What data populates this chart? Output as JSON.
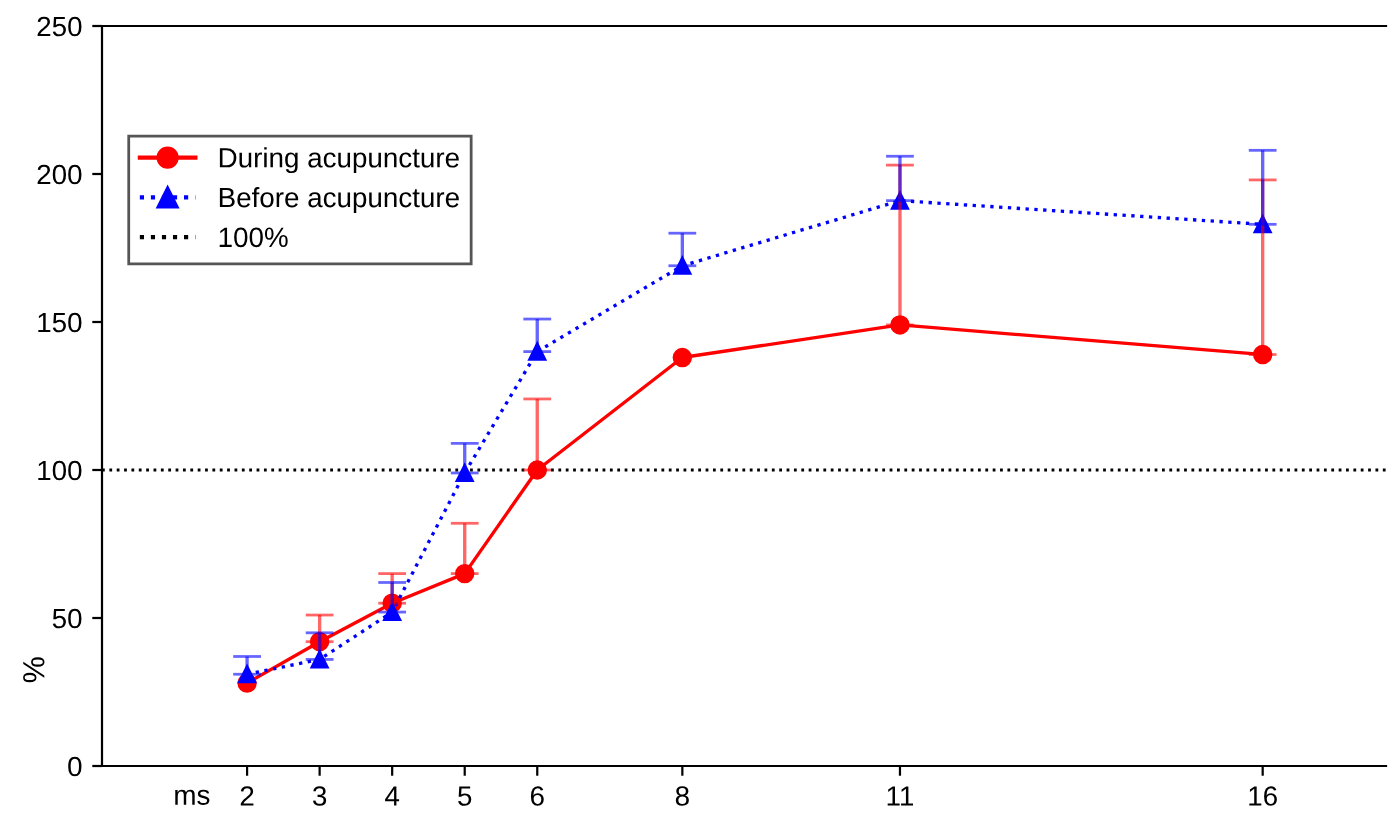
{
  "chart_data": {
    "type": "line",
    "xlabel": "ms",
    "ylabel": "%",
    "x": [
      2,
      3,
      4,
      5,
      6,
      8,
      11,
      16
    ],
    "xlim": [
      0,
      17.7
    ],
    "xticks": [
      2,
      3,
      4,
      5,
      6,
      8,
      11,
      16
    ],
    "ylim": [
      0,
      250
    ],
    "yticks": [
      0,
      50,
      100,
      150,
      200,
      250
    ],
    "grid": false,
    "legend": "top left",
    "series": [
      {
        "name": "During acupuncture",
        "color": "#ff0000",
        "marker": "circle",
        "line_style": "solid",
        "values": [
          28,
          42,
          55,
          65,
          100,
          138,
          149,
          139
        ],
        "errors": [
          null,
          [
            42,
            51
          ],
          [
            55,
            65
          ],
          [
            65,
            82
          ],
          [
            100,
            124
          ],
          null,
          [
            149,
            203
          ],
          [
            139,
            198
          ]
        ]
      },
      {
        "name": "Before acupuncture",
        "color": "#0000ff",
        "marker": "triangle",
        "line_style": "dotted",
        "values": [
          31,
          36,
          52,
          99,
          140,
          169,
          191,
          183
        ],
        "errors": [
          [
            31,
            37
          ],
          [
            36,
            45
          ],
          [
            52,
            62
          ],
          [
            99,
            109
          ],
          [
            140,
            151
          ],
          [
            169,
            180
          ],
          [
            191,
            206
          ],
          [
            183,
            208
          ]
        ]
      }
    ],
    "ref_lines": [
      {
        "axis": "y",
        "value": 100,
        "label": "100%",
        "color": "#000000",
        "line_style": "dotted"
      }
    ]
  }
}
